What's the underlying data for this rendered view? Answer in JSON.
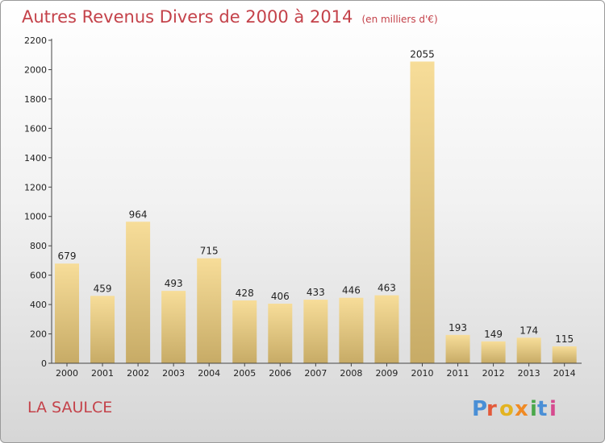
{
  "title": "Autres Revenus Divers de 2000 à 2014",
  "subtitle": "(en milliers d'€)",
  "location": "LA SAULCE",
  "logo": {
    "text": "Proxiti",
    "letters": [
      "P",
      "r",
      "o",
      "x",
      "i",
      "t",
      "i"
    ],
    "colors": [
      "#4a8fd6",
      "#e35a3a",
      "#e3b321",
      "#f08a24",
      "#4aa84a",
      "#4a8fd6",
      "#d64a8f"
    ]
  },
  "colors": {
    "title": "#c4424a",
    "bar_top": "#f7dd99",
    "bar_bottom": "#c7ab66",
    "axis": "#444444"
  },
  "chart_data": {
    "type": "bar",
    "categories": [
      "2000",
      "2001",
      "2002",
      "2003",
      "2004",
      "2005",
      "2006",
      "2007",
      "2008",
      "2009",
      "2010",
      "2011",
      "2012",
      "2013",
      "2014"
    ],
    "values": [
      679,
      459,
      964,
      493,
      715,
      428,
      406,
      433,
      446,
      463,
      2055,
      193,
      149,
      174,
      115
    ],
    "ylim": [
      0,
      2200
    ],
    "yticks": [
      0,
      200,
      400,
      600,
      800,
      1000,
      1200,
      1400,
      1600,
      1800,
      2000,
      2200
    ],
    "grid": false,
    "legend": "none"
  }
}
